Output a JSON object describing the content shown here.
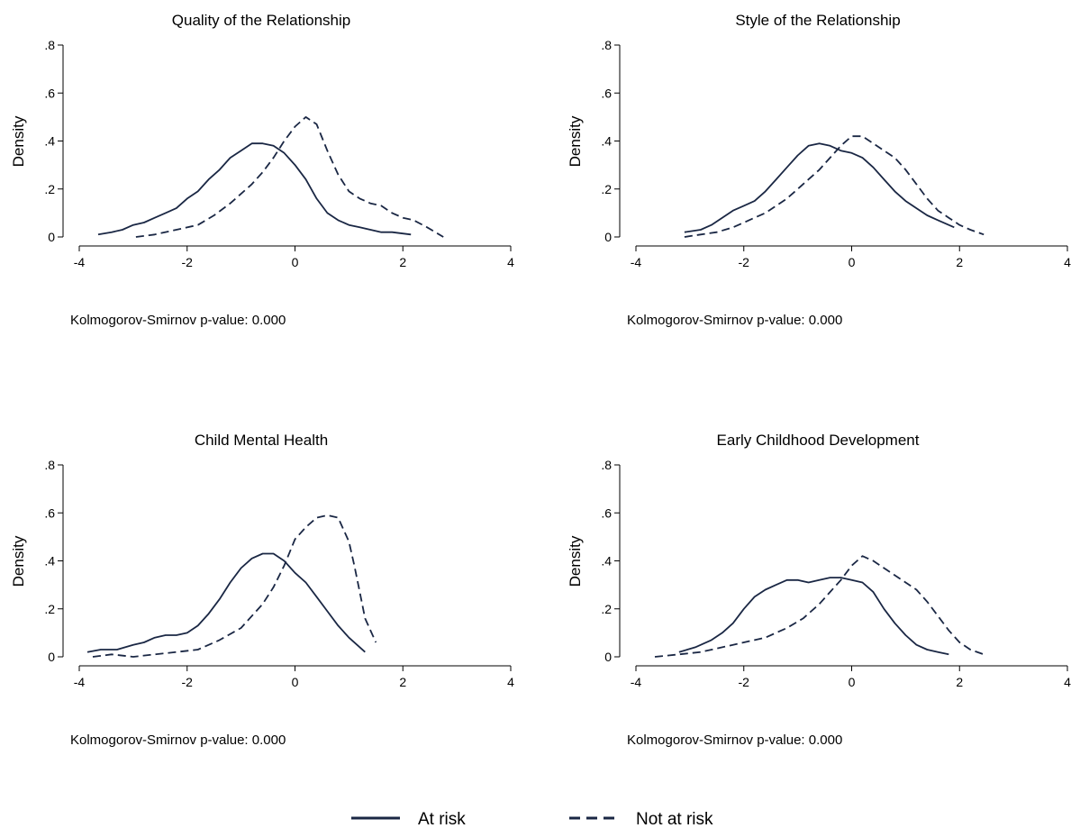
{
  "colors": {
    "line": "#1a2744"
  },
  "legend": [
    {
      "label": "At risk",
      "style": "solid"
    },
    {
      "label": "Not at risk",
      "style": "dashed"
    }
  ],
  "chart_data": [
    {
      "type": "line",
      "title": "Quality of the Relationship",
      "ylabel": "Density",
      "note": "Kolmogorov-Smirnov p-value: 0.000",
      "xlim": [
        -4,
        4
      ],
      "ylim": [
        0,
        0.8
      ],
      "xticks": [
        "-4",
        "-2",
        "0",
        "2",
        "4"
      ],
      "yticks": [
        "0",
        ".2",
        ".4",
        ".6",
        ".8"
      ],
      "series": [
        {
          "name": "At risk",
          "style": "solid",
          "x": [
            -3.65,
            -3.4,
            -3.2,
            -3.0,
            -2.8,
            -2.6,
            -2.4,
            -2.2,
            -2.0,
            -1.8,
            -1.6,
            -1.4,
            -1.2,
            -1.0,
            -0.8,
            -0.6,
            -0.4,
            -0.2,
            0.0,
            0.2,
            0.4,
            0.6,
            0.8,
            1.0,
            1.2,
            1.4,
            1.6,
            1.8,
            2.15
          ],
          "y": [
            0.01,
            0.02,
            0.03,
            0.05,
            0.06,
            0.08,
            0.1,
            0.12,
            0.16,
            0.19,
            0.24,
            0.28,
            0.33,
            0.36,
            0.39,
            0.39,
            0.38,
            0.35,
            0.3,
            0.24,
            0.16,
            0.1,
            0.07,
            0.05,
            0.04,
            0.03,
            0.02,
            0.02,
            0.01
          ]
        },
        {
          "name": "Not at risk",
          "style": "dashed",
          "x": [
            -2.95,
            -2.6,
            -2.2,
            -1.8,
            -1.5,
            -1.2,
            -1.0,
            -0.8,
            -0.6,
            -0.4,
            -0.2,
            0.0,
            0.2,
            0.4,
            0.6,
            0.8,
            1.0,
            1.2,
            1.4,
            1.6,
            1.8,
            2.0,
            2.2,
            2.45,
            2.75
          ],
          "y": [
            0.0,
            0.01,
            0.03,
            0.05,
            0.09,
            0.14,
            0.18,
            0.22,
            0.27,
            0.33,
            0.4,
            0.46,
            0.5,
            0.47,
            0.36,
            0.26,
            0.19,
            0.16,
            0.14,
            0.13,
            0.1,
            0.08,
            0.07,
            0.04,
            0.0
          ]
        }
      ]
    },
    {
      "type": "line",
      "title": "Style of the Relationship",
      "ylabel": "Density",
      "note": "Kolmogorov-Smirnov p-value: 0.000",
      "xlim": [
        -4,
        4
      ],
      "ylim": [
        0,
        0.8
      ],
      "xticks": [
        "-4",
        "-2",
        "0",
        "2",
        "4"
      ],
      "yticks": [
        "0",
        ".2",
        ".4",
        ".6",
        ".8"
      ],
      "series": [
        {
          "name": "At risk",
          "style": "solid",
          "x": [
            -3.1,
            -2.8,
            -2.6,
            -2.4,
            -2.2,
            -2.0,
            -1.8,
            -1.6,
            -1.4,
            -1.2,
            -1.0,
            -0.8,
            -0.6,
            -0.4,
            -0.2,
            0.0,
            0.2,
            0.4,
            0.6,
            0.8,
            1.0,
            1.2,
            1.4,
            1.6,
            1.9
          ],
          "y": [
            0.02,
            0.03,
            0.05,
            0.08,
            0.11,
            0.13,
            0.15,
            0.19,
            0.24,
            0.29,
            0.34,
            0.38,
            0.39,
            0.38,
            0.36,
            0.35,
            0.33,
            0.29,
            0.24,
            0.19,
            0.15,
            0.12,
            0.09,
            0.07,
            0.04
          ]
        },
        {
          "name": "Not at risk",
          "style": "dashed",
          "x": [
            -3.1,
            -2.8,
            -2.5,
            -2.2,
            -2.0,
            -1.8,
            -1.6,
            -1.4,
            -1.2,
            -1.0,
            -0.8,
            -0.6,
            -0.4,
            -0.2,
            0.0,
            0.2,
            0.4,
            0.6,
            0.8,
            1.0,
            1.2,
            1.4,
            1.6,
            1.8,
            2.0,
            2.2,
            2.45
          ],
          "y": [
            0.0,
            0.01,
            0.02,
            0.04,
            0.06,
            0.08,
            0.1,
            0.13,
            0.16,
            0.2,
            0.24,
            0.28,
            0.33,
            0.38,
            0.42,
            0.42,
            0.39,
            0.36,
            0.33,
            0.28,
            0.22,
            0.16,
            0.11,
            0.08,
            0.05,
            0.03,
            0.01
          ]
        }
      ]
    },
    {
      "type": "line",
      "title": "Child Mental Health",
      "ylabel": "Density",
      "note": "Kolmogorov-Smirnov p-value: 0.000",
      "xlim": [
        -4,
        4
      ],
      "ylim": [
        0,
        0.8
      ],
      "xticks": [
        "-4",
        "-2",
        "0",
        "2",
        "4"
      ],
      "yticks": [
        "0",
        ".2",
        ".4",
        ".6",
        ".8"
      ],
      "series": [
        {
          "name": "At risk",
          "style": "solid",
          "x": [
            -3.85,
            -3.6,
            -3.3,
            -3.0,
            -2.8,
            -2.6,
            -2.4,
            -2.2,
            -2.0,
            -1.8,
            -1.6,
            -1.4,
            -1.2,
            -1.0,
            -0.8,
            -0.6,
            -0.4,
            -0.2,
            0.0,
            0.2,
            0.4,
            0.6,
            0.8,
            1.0,
            1.3
          ],
          "y": [
            0.02,
            0.03,
            0.03,
            0.05,
            0.06,
            0.08,
            0.09,
            0.09,
            0.1,
            0.13,
            0.18,
            0.24,
            0.31,
            0.37,
            0.41,
            0.43,
            0.43,
            0.4,
            0.35,
            0.31,
            0.25,
            0.19,
            0.13,
            0.08,
            0.02
          ]
        },
        {
          "name": "Not at risk",
          "style": "dashed",
          "x": [
            -3.75,
            -3.4,
            -3.0,
            -2.6,
            -2.2,
            -1.8,
            -1.4,
            -1.0,
            -0.8,
            -0.6,
            -0.4,
            -0.2,
            0.0,
            0.2,
            0.4,
            0.6,
            0.8,
            1.0,
            1.1,
            1.2,
            1.3,
            1.5
          ],
          "y": [
            0.0,
            0.01,
            0.0,
            0.01,
            0.02,
            0.03,
            0.07,
            0.12,
            0.17,
            0.22,
            0.29,
            0.38,
            0.49,
            0.54,
            0.58,
            0.59,
            0.58,
            0.48,
            0.38,
            0.27,
            0.16,
            0.06
          ]
        }
      ]
    },
    {
      "type": "line",
      "title": "Early Childhood Development",
      "ylabel": "Density",
      "note": "Kolmogorov-Smirnov p-value: 0.000",
      "xlim": [
        -4,
        4
      ],
      "ylim": [
        0,
        0.8
      ],
      "xticks": [
        "-4",
        "-2",
        "0",
        "2",
        "4"
      ],
      "yticks": [
        "0",
        ".2",
        ".4",
        ".6",
        ".8"
      ],
      "series": [
        {
          "name": "At risk",
          "style": "solid",
          "x": [
            -3.2,
            -2.9,
            -2.6,
            -2.4,
            -2.2,
            -2.0,
            -1.8,
            -1.6,
            -1.4,
            -1.2,
            -1.0,
            -0.8,
            -0.6,
            -0.4,
            -0.2,
            0.0,
            0.2,
            0.4,
            0.6,
            0.8,
            1.0,
            1.2,
            1.4,
            1.6,
            1.8
          ],
          "y": [
            0.02,
            0.04,
            0.07,
            0.1,
            0.14,
            0.2,
            0.25,
            0.28,
            0.3,
            0.32,
            0.32,
            0.31,
            0.32,
            0.33,
            0.33,
            0.32,
            0.31,
            0.27,
            0.2,
            0.14,
            0.09,
            0.05,
            0.03,
            0.02,
            0.01
          ]
        },
        {
          "name": "Not at risk",
          "style": "dashed",
          "x": [
            -3.65,
            -3.2,
            -2.8,
            -2.4,
            -2.0,
            -1.6,
            -1.2,
            -0.9,
            -0.6,
            -0.4,
            -0.2,
            0.0,
            0.2,
            0.4,
            0.6,
            0.8,
            1.0,
            1.2,
            1.4,
            1.6,
            1.8,
            2.0,
            2.2,
            2.45
          ],
          "y": [
            0.0,
            0.01,
            0.02,
            0.04,
            0.06,
            0.08,
            0.12,
            0.16,
            0.22,
            0.27,
            0.32,
            0.38,
            0.42,
            0.4,
            0.37,
            0.34,
            0.31,
            0.28,
            0.23,
            0.17,
            0.11,
            0.06,
            0.03,
            0.01
          ]
        }
      ]
    }
  ]
}
